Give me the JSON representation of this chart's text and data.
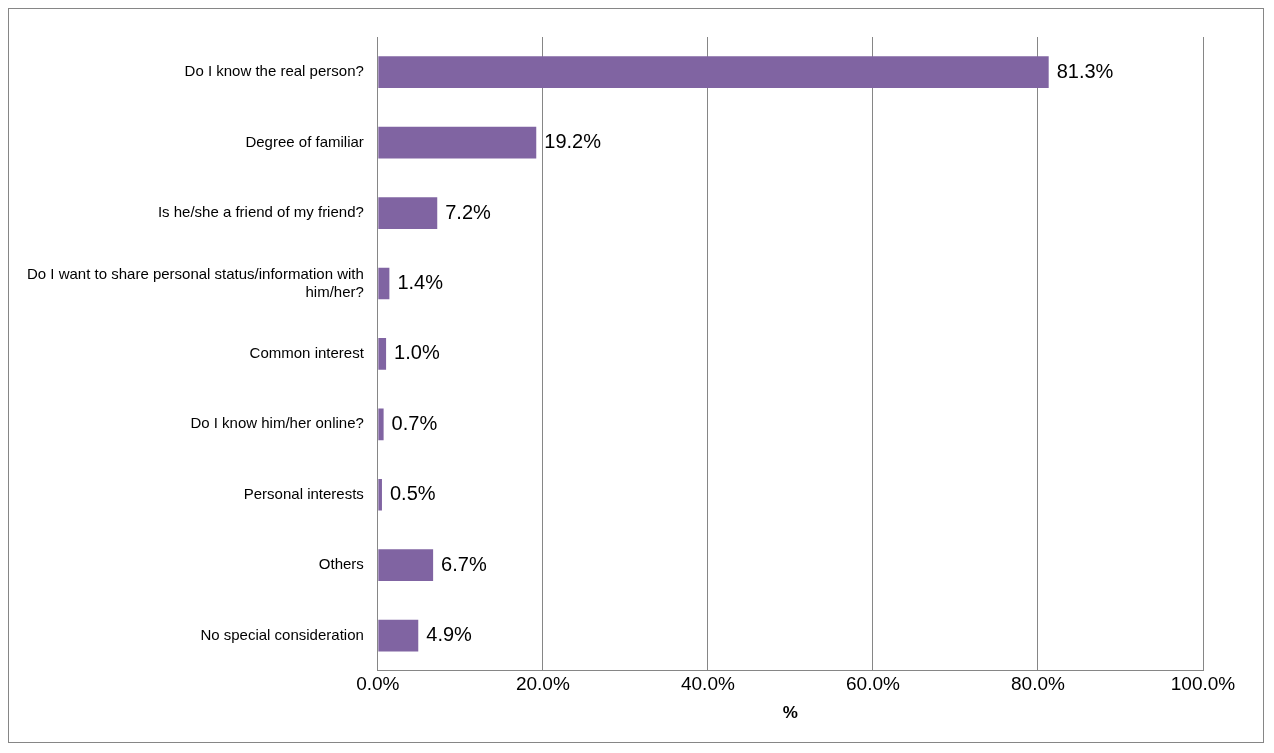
{
  "chart_data": {
    "type": "bar",
    "orientation": "horizontal",
    "xlabel": "%",
    "categories": [
      "Do I know the real person?",
      "Degree of familiar",
      "Is he/she a friend of my friend?",
      "Do I want to share personal status/information with him/her?",
      "Common interest",
      "Do I know him/her online?",
      "Personal interests",
      "Others",
      "No special consideration"
    ],
    "values": [
      81.3,
      19.2,
      7.2,
      1.4,
      1.0,
      0.7,
      0.5,
      6.7,
      4.9
    ],
    "value_labels": [
      "81.3%",
      "19.2%",
      "7.2%",
      "1.4%",
      "1.0%",
      "0.7%",
      "0.5%",
      "6.7%",
      "4.9%"
    ],
    "color": "#8064a2",
    "xlim": [
      0,
      100
    ],
    "xticks": [
      {
        "value": 0,
        "label": "0.0%"
      },
      {
        "value": 20,
        "label": "20.0%"
      },
      {
        "value": 40,
        "label": "40.0%"
      },
      {
        "value": 60,
        "label": "60.0%"
      },
      {
        "value": 80,
        "label": "80.0%"
      },
      {
        "value": 100,
        "label": "100.0%"
      }
    ],
    "grid": "x"
  }
}
